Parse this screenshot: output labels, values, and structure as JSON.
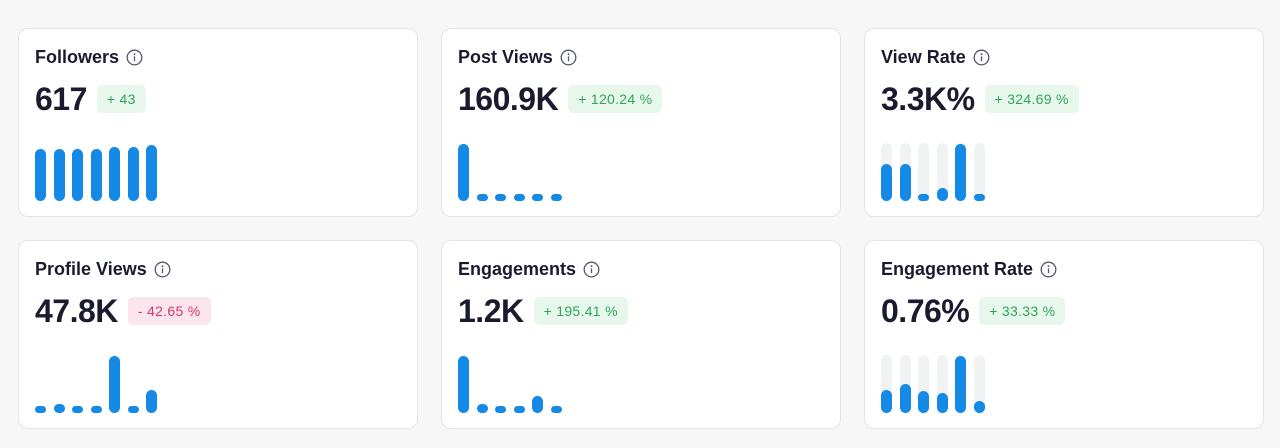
{
  "accent_color": "#1589e6",
  "cards": [
    {
      "key": "followers",
      "title": "Followers",
      "value": "617",
      "change": "+ 43",
      "trend": "up",
      "track": false,
      "bars": [
        0.9,
        0.9,
        0.9,
        0.9,
        0.93,
        0.93,
        0.97
      ]
    },
    {
      "key": "post-views",
      "title": "Post Views",
      "value": "160.9K",
      "change": "+ 120.24 %",
      "trend": "up",
      "track": false,
      "bars": [
        0.98,
        0.07,
        0.07,
        0.1,
        0.07,
        0.07
      ]
    },
    {
      "key": "view-rate",
      "title": "View Rate",
      "value": "3.3K%",
      "change": "+ 324.69 %",
      "trend": "up",
      "track": true,
      "bars": [
        0.64,
        0.64,
        0.07,
        0.22,
        0.98,
        0.07
      ]
    },
    {
      "key": "profile-views",
      "title": "Profile Views",
      "value": "47.8K",
      "change": "- 42.65 %",
      "trend": "down",
      "track": false,
      "bars": [
        0.07,
        0.15,
        0.07,
        0.07,
        0.98,
        0.1,
        0.4
      ]
    },
    {
      "key": "engagements",
      "title": "Engagements",
      "value": "1.2K",
      "change": "+ 195.41 %",
      "trend": "up",
      "track": false,
      "bars": [
        0.98,
        0.15,
        0.1,
        0.1,
        0.3,
        0.07
      ]
    },
    {
      "key": "engagement-rate",
      "title": "Engagement Rate",
      "value": "0.76%",
      "change": "+ 33.33 %",
      "trend": "up",
      "track": true,
      "bars": [
        0.4,
        0.5,
        0.38,
        0.34,
        0.98,
        0.2
      ]
    }
  ]
}
